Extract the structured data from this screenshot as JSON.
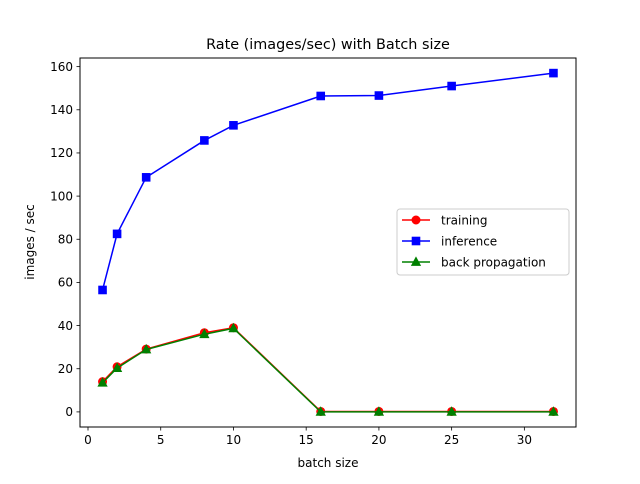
{
  "chart_data": {
    "type": "line",
    "title": "Rate (images/sec) with Batch size",
    "xlabel": "batch size",
    "ylabel": "images / sec",
    "xlim": [
      -0.55,
      33.55
    ],
    "ylim": [
      -7.0,
      164.0
    ],
    "xticks": [
      0,
      5,
      10,
      15,
      20,
      25,
      30
    ],
    "yticks": [
      0,
      20,
      40,
      60,
      80,
      100,
      120,
      140,
      160
    ],
    "grid": false,
    "legend_position": "center-right",
    "x": [
      1,
      2,
      4,
      8,
      10,
      16,
      20,
      25,
      32
    ],
    "series": [
      {
        "name": "training",
        "color": "#ff0000",
        "marker": "circle",
        "values": [
          14.0,
          20.9,
          29.1,
          36.7,
          39.0,
          0.2,
          0.2,
          0.2,
          0.2
        ]
      },
      {
        "name": "inference",
        "color": "#0000ff",
        "marker": "square",
        "values": [
          56.5,
          82.5,
          108.7,
          125.8,
          132.8,
          146.4,
          146.6,
          151.0,
          157.0
        ]
      },
      {
        "name": "back propagation",
        "color": "#008000",
        "marker": "triangle-up",
        "values": [
          13.5,
          20.3,
          28.9,
          36.0,
          38.7,
          0.0,
          0.0,
          0.0,
          0.0
        ]
      }
    ]
  }
}
